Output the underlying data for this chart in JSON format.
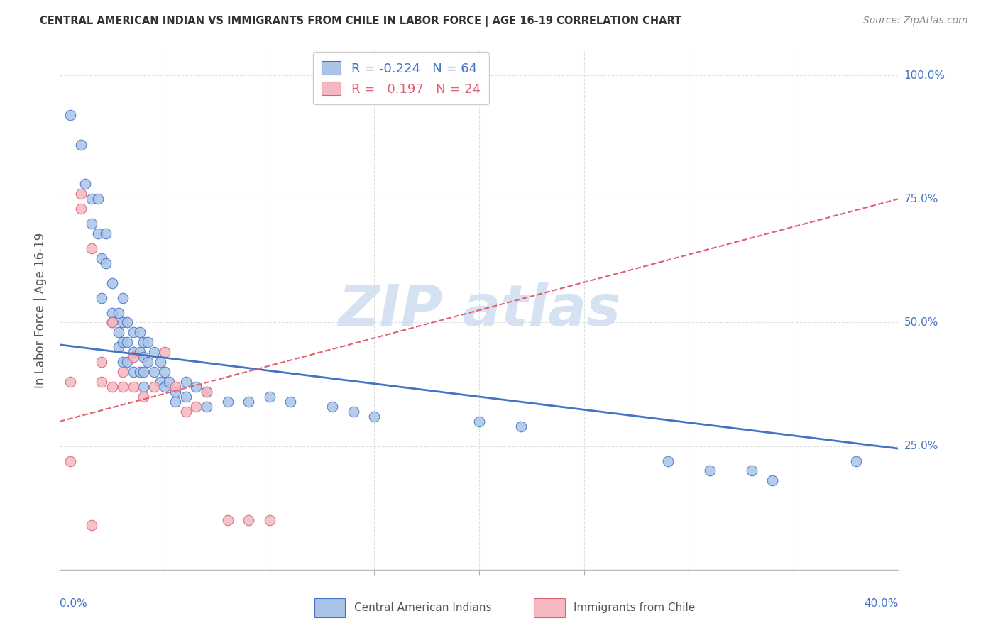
{
  "title": "CENTRAL AMERICAN INDIAN VS IMMIGRANTS FROM CHILE IN LABOR FORCE | AGE 16-19 CORRELATION CHART",
  "source": "Source: ZipAtlas.com",
  "ylabel": "In Labor Force | Age 16-19",
  "legend_blue": {
    "R": "-0.224",
    "N": "64",
    "label": "Central American Indians"
  },
  "legend_pink": {
    "R": "0.197",
    "N": "24",
    "label": "Immigrants from Chile"
  },
  "blue_scatter": [
    [
      0.5,
      92
    ],
    [
      1.0,
      86
    ],
    [
      1.2,
      78
    ],
    [
      1.5,
      75
    ],
    [
      1.5,
      70
    ],
    [
      1.8,
      75
    ],
    [
      1.8,
      68
    ],
    [
      2.0,
      63
    ],
    [
      2.0,
      55
    ],
    [
      2.2,
      68
    ],
    [
      2.2,
      62
    ],
    [
      2.5,
      58
    ],
    [
      2.5,
      52
    ],
    [
      2.5,
      50
    ],
    [
      2.8,
      52
    ],
    [
      2.8,
      48
    ],
    [
      2.8,
      45
    ],
    [
      3.0,
      55
    ],
    [
      3.0,
      50
    ],
    [
      3.0,
      46
    ],
    [
      3.0,
      42
    ],
    [
      3.2,
      50
    ],
    [
      3.2,
      46
    ],
    [
      3.2,
      42
    ],
    [
      3.5,
      48
    ],
    [
      3.5,
      44
    ],
    [
      3.5,
      40
    ],
    [
      3.8,
      48
    ],
    [
      3.8,
      44
    ],
    [
      3.8,
      40
    ],
    [
      4.0,
      46
    ],
    [
      4.0,
      43
    ],
    [
      4.0,
      40
    ],
    [
      4.0,
      37
    ],
    [
      4.2,
      46
    ],
    [
      4.2,
      42
    ],
    [
      4.5,
      44
    ],
    [
      4.5,
      40
    ],
    [
      4.8,
      42
    ],
    [
      4.8,
      38
    ],
    [
      5.0,
      40
    ],
    [
      5.0,
      37
    ],
    [
      5.2,
      38
    ],
    [
      5.5,
      36
    ],
    [
      5.5,
      34
    ],
    [
      6.0,
      38
    ],
    [
      6.0,
      35
    ],
    [
      6.5,
      37
    ],
    [
      7.0,
      36
    ],
    [
      7.0,
      33
    ],
    [
      8.0,
      34
    ],
    [
      9.0,
      34
    ],
    [
      10.0,
      35
    ],
    [
      11.0,
      34
    ],
    [
      13.0,
      33
    ],
    [
      14.0,
      32
    ],
    [
      15.0,
      31
    ],
    [
      20.0,
      30
    ],
    [
      22.0,
      29
    ],
    [
      29.0,
      22
    ],
    [
      31.0,
      20
    ],
    [
      33.0,
      20
    ],
    [
      34.0,
      18
    ],
    [
      38.0,
      22
    ]
  ],
  "pink_scatter": [
    [
      0.5,
      38
    ],
    [
      0.5,
      22
    ],
    [
      1.0,
      76
    ],
    [
      1.0,
      73
    ],
    [
      1.5,
      65
    ],
    [
      2.0,
      42
    ],
    [
      2.0,
      38
    ],
    [
      2.5,
      50
    ],
    [
      2.5,
      37
    ],
    [
      3.0,
      40
    ],
    [
      3.0,
      37
    ],
    [
      3.5,
      43
    ],
    [
      3.5,
      37
    ],
    [
      4.0,
      35
    ],
    [
      4.5,
      37
    ],
    [
      5.0,
      44
    ],
    [
      5.5,
      37
    ],
    [
      6.0,
      32
    ],
    [
      6.5,
      33
    ],
    [
      7.0,
      36
    ],
    [
      8.0,
      10
    ],
    [
      9.0,
      10
    ],
    [
      10.0,
      10
    ],
    [
      1.5,
      9
    ]
  ],
  "blue_line": {
    "x0": 0.0,
    "y0": 45.5,
    "x1": 40.0,
    "y1": 24.5
  },
  "pink_line": {
    "x0": 0.0,
    "y0": 30.0,
    "x1": 40.0,
    "y1": 75.0
  },
  "xlim": [
    0.0,
    40.0
  ],
  "ylim": [
    0.0,
    105.0
  ],
  "yticks": [
    25.0,
    50.0,
    75.0,
    100.0
  ],
  "xticks": [
    5.0,
    10.0,
    15.0,
    20.0,
    25.0,
    30.0,
    35.0
  ],
  "background_color": "#ffffff",
  "blue_color": "#aac4e8",
  "pink_color": "#f4b8c0",
  "blue_line_color": "#4472c4",
  "pink_line_color": "#e06070",
  "watermark_color": "#d0dff0",
  "grid_color": "#e0e0e0",
  "axis_label_color": "#4472c4",
  "text_color": "#555555"
}
